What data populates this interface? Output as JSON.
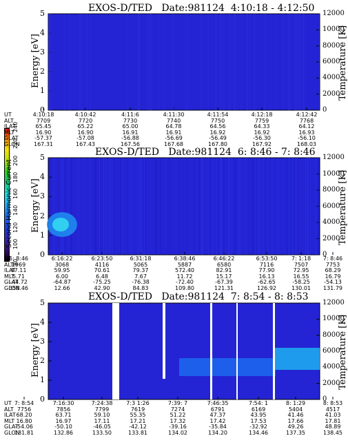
{
  "colors": {
    "background": "#2424d4",
    "gap": "#ffffff"
  },
  "colorbar": {
    "title": "Second Harmonic Current",
    "ticks": [
      "80",
      "100",
      "120",
      "140",
      "160",
      "180",
      "200",
      "220",
      "240"
    ]
  },
  "row_labels": [
    "UT",
    "ALT",
    "ILAT",
    "MLT",
    "GLAT",
    "GLON"
  ],
  "chart_data": [
    {
      "type": "heatmap",
      "title": "EXOS-D/TED   Date:981124  4:10:18 - 4:12:50",
      "ylabel": "Energy [eV]",
      "y2label": "Temperature [K]",
      "ylim": [
        0,
        5
      ],
      "y2lim": [
        0,
        12000
      ],
      "yticks": [
        "0",
        "1",
        "2",
        "3",
        "4",
        "5"
      ],
      "y2ticks": [
        "0",
        "2000",
        "4000",
        "6000",
        "8000",
        "10000",
        "12000"
      ],
      "columns": [
        [
          "4:10:18",
          "7709",
          "65.45",
          "16.90",
          "-57.37",
          "167.31"
        ],
        [
          "4:10:42",
          "7720",
          "65.22",
          "16.90",
          "-57.08",
          "167.43"
        ],
        [
          "4:11:6",
          "7730",
          "65.00",
          "16.91",
          "-56.88",
          "167.56"
        ],
        [
          "4:11:30",
          "7740",
          "64.78",
          "16.91",
          "-56.69",
          "167.68"
        ],
        [
          "4:11:54",
          "7750",
          "64.56",
          "16.92",
          "-56.49",
          "167.80"
        ],
        [
          "4:12:18",
          "7759",
          "64.33",
          "16.92",
          "-56.30",
          "167.92"
        ],
        [
          "4:12:42",
          "7768",
          "64.12",
          "16.93",
          "-56.10",
          "168.03"
        ]
      ]
    },
    {
      "type": "heatmap",
      "title": "EXOS-D/TED   Date:981124  6: 8:46 - 7: 8:46",
      "ylabel": "Energy [eV]",
      "y2label": "Temperature [K]",
      "ylim": [
        0,
        5
      ],
      "y2lim": [
        0,
        12000
      ],
      "yticks": [
        "0",
        "1",
        "2",
        "3",
        "4",
        "5"
      ],
      "y2ticks": [
        "0",
        "2000",
        "4000",
        "6000",
        "8000",
        "10000",
        "12000"
      ],
      "columns": [
        [
          "6: 8:46",
          "1969",
          "47.11",
          "5.71",
          "-44.72",
          "358.46"
        ],
        [
          "6:16:22",
          "3068",
          "59.95",
          "6.00",
          "-64.87",
          "12.66"
        ],
        [
          "6:23:50",
          "4116",
          "70.61",
          "6.48",
          "-75.25",
          "42.90"
        ],
        [
          "6:31:18",
          "5065",
          "79.37",
          "7.67",
          "-76.38",
          "84.83"
        ],
        [
          "6:38:46",
          "5887",
          "572.40",
          "11.72",
          "-72.40",
          "109.80"
        ],
        [
          "6:46:22",
          "6580",
          "82.91",
          "15.17",
          "-67.39",
          "121.31"
        ],
        [
          "6:53:50",
          "7116",
          "77.90",
          "16.13",
          "-62.65",
          "126.92"
        ],
        [
          "7: 1:18",
          "7507",
          "72.95",
          "16.55",
          "-58.25",
          "130.01"
        ],
        [
          "7: 8:46",
          "7753",
          "68.29",
          "16.79",
          "-54.13",
          "131.79"
        ]
      ]
    },
    {
      "type": "heatmap",
      "title": "EXOS-D/TED   Date:981124  7: 8:54 - 8: 8:53",
      "ylabel": "Energy [eV]",
      "y2label": "Temperature [K]",
      "ylim": [
        0,
        5
      ],
      "y2lim": [
        0,
        12000
      ],
      "yticks": [
        "0",
        "1",
        "2",
        "3",
        "4",
        "5"
      ],
      "y2ticks": [
        "0",
        "2000",
        "4000",
        "6000",
        "8000",
        "10000",
        "12000"
      ],
      "columns": [
        [
          "7: 8:54",
          "7756",
          "68.20",
          "16.80",
          "-54.06",
          "131.81"
        ],
        [
          "7:16:30",
          "7856",
          "63.71",
          "16.97",
          "-50.10",
          "132.86"
        ],
        [
          "7:24:38",
          "7799",
          "59.10",
          "17.11",
          "-46.05",
          "133.50"
        ],
        [
          "7:3 1:26",
          "7619",
          "55.35",
          "17.21",
          "-42.12",
          "133.81"
        ],
        [
          "7:39: 7",
          "7274",
          "51.22",
          "17.32",
          "-39.16",
          "134.02"
        ],
        [
          "7:46:35",
          "6791",
          "47.37",
          "17.42",
          "-35.84",
          "134.20"
        ],
        [
          "7:54: 1",
          "6169",
          "43.95",
          "17.53",
          "-32.92",
          "134.46"
        ],
        [
          "8: 1:29",
          "5404",
          "41.46",
          "17.66",
          "49.26",
          "137.35"
        ],
        [
          "8: 8:53",
          "4517",
          "41.03",
          "17.81",
          "48.89",
          "138.45"
        ]
      ]
    }
  ]
}
